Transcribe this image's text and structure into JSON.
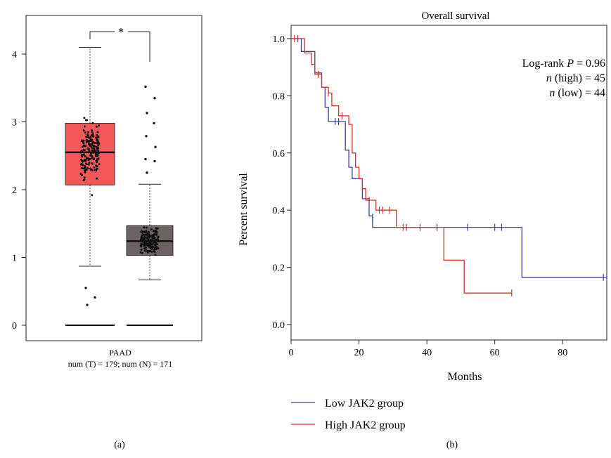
{
  "colors": {
    "tumor_box": "#f2575a",
    "normal_box": "#6b6363",
    "points": "#111111",
    "low_line": "#3c3ca8",
    "high_line": "#d9302c",
    "axis": "#222222"
  },
  "panel_a": {
    "caption": "(a)",
    "significance": "*",
    "x_label": "PAAD",
    "x_sublabel": "num (T) = 179; num (N) = 171"
  },
  "panel_b": {
    "caption": "(b)",
    "stats": {
      "logrank_label": "Log-rank",
      "p_symbol": "P",
      "p_value": "= 0.96",
      "n_symbol": "n",
      "high_text": "(high) = 45",
      "low_text": "(low) = 44"
    }
  },
  "chart_data": [
    {
      "type": "box",
      "title": "",
      "xlabel": "PAAD",
      "ylabel": "",
      "ylim": [
        0,
        4.4
      ],
      "yticks": [
        0,
        1,
        2,
        3,
        4
      ],
      "grid": false,
      "groups": [
        {
          "id": "T",
          "n": 179,
          "min": 0.87,
          "q1": 2.07,
          "median": 2.55,
          "q3": 2.98,
          "max": 4.1,
          "outliers": [
            0.55,
            0.41,
            0.3
          ]
        },
        {
          "id": "N",
          "n": 171,
          "min": 0.67,
          "q1": 1.03,
          "median": 1.24,
          "q3": 1.47,
          "max": 2.08,
          "outliers": [
            3.52,
            3.35,
            3.13,
            2.98,
            2.79,
            2.63,
            2.45,
            2.42,
            2.25
          ]
        }
      ]
    },
    {
      "type": "line",
      "step": true,
      "title": "Overall survival",
      "xlabel": "Months",
      "ylabel": "Percent survival",
      "xlim": [
        0,
        93
      ],
      "ylim": [
        -0.05,
        1.05
      ],
      "xticks": [
        0,
        20,
        40,
        60,
        80
      ],
      "yticks": [
        0.0,
        0.2,
        0.4,
        0.6,
        0.8,
        1.0
      ],
      "yticklabels": [
        "0.0",
        "0.2",
        "0.4",
        "0.6",
        "0.8",
        "1.0"
      ],
      "grid": false,
      "legend": "bottom-left",
      "series": [
        {
          "name": "Low JAK2 group",
          "color": "#3c3ca8",
          "points": [
            [
              0,
              1.0
            ],
            [
              3,
              1.0
            ],
            [
              3,
              0.955
            ],
            [
              7,
              0.955
            ],
            [
              7,
              0.88
            ],
            [
              9,
              0.88
            ],
            [
              9,
              0.83
            ],
            [
              10,
              0.83
            ],
            [
              10,
              0.76
            ],
            [
              11,
              0.76
            ],
            [
              11,
              0.71
            ],
            [
              16,
              0.71
            ],
            [
              16,
              0.61
            ],
            [
              17,
              0.61
            ],
            [
              17,
              0.55
            ],
            [
              18,
              0.55
            ],
            [
              18,
              0.51
            ],
            [
              21,
              0.51
            ],
            [
              21,
              0.44
            ],
            [
              23,
              0.44
            ],
            [
              23,
              0.38
            ],
            [
              24,
              0.38
            ],
            [
              24,
              0.34
            ],
            [
              68,
              0.34
            ],
            [
              68,
              0.165
            ],
            [
              93,
              0.165
            ]
          ],
          "censored": [
            [
              2,
              1.0
            ],
            [
              13,
              0.71
            ],
            [
              14,
              0.71
            ],
            [
              24,
              0.375
            ],
            [
              43,
              0.34
            ],
            [
              52,
              0.34
            ],
            [
              60,
              0.34
            ],
            [
              62,
              0.34
            ],
            [
              92,
              0.165
            ]
          ]
        },
        {
          "name": "High JAK2 group",
          "color": "#d9302c",
          "points": [
            [
              0,
              1.0
            ],
            [
              4,
              1.0
            ],
            [
              4,
              0.95
            ],
            [
              6,
              0.95
            ],
            [
              6,
              0.91
            ],
            [
              7,
              0.91
            ],
            [
              7,
              0.875
            ],
            [
              9,
              0.875
            ],
            [
              9,
              0.83
            ],
            [
              11,
              0.83
            ],
            [
              11,
              0.81
            ],
            [
              12,
              0.81
            ],
            [
              12,
              0.765
            ],
            [
              14,
              0.765
            ],
            [
              14,
              0.73
            ],
            [
              17,
              0.73
            ],
            [
              17,
              0.7
            ],
            [
              18,
              0.7
            ],
            [
              18,
              0.6
            ],
            [
              19,
              0.6
            ],
            [
              19,
              0.55
            ],
            [
              20,
              0.55
            ],
            [
              20,
              0.51
            ],
            [
              21,
              0.51
            ],
            [
              21,
              0.475
            ],
            [
              22,
              0.475
            ],
            [
              22,
              0.435
            ],
            [
              25,
              0.435
            ],
            [
              25,
              0.4
            ],
            [
              31,
              0.4
            ],
            [
              31,
              0.34
            ],
            [
              45,
              0.34
            ],
            [
              45,
              0.225
            ],
            [
              51,
              0.225
            ],
            [
              51,
              0.11
            ],
            [
              65,
              0.11
            ]
          ],
          "censored": [
            [
              1,
              1.0
            ],
            [
              8,
              0.875
            ],
            [
              11,
              0.81
            ],
            [
              15,
              0.73
            ],
            [
              23,
              0.435
            ],
            [
              26,
              0.4
            ],
            [
              27,
              0.4
            ],
            [
              29,
              0.4
            ],
            [
              33,
              0.34
            ],
            [
              34,
              0.34
            ],
            [
              38,
              0.34
            ],
            [
              65,
              0.11
            ]
          ]
        }
      ]
    }
  ]
}
